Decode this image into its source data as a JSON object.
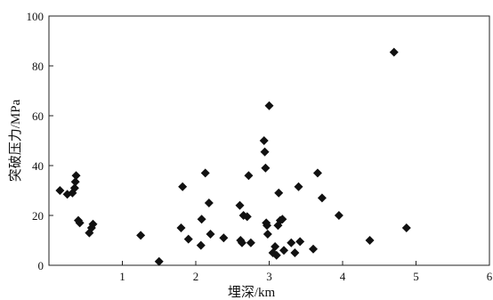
{
  "chart_data": {
    "type": "scatter",
    "title": "",
    "xlabel": "埋深/km",
    "ylabel": "突破压力/MPa",
    "xlim": [
      0,
      6
    ],
    "ylim": [
      0,
      100
    ],
    "x_ticks": [
      1,
      2,
      3,
      4,
      5,
      6
    ],
    "y_ticks": [
      0,
      20,
      40,
      60,
      80,
      100
    ],
    "marker": "diamond",
    "grid": false,
    "colors": {
      "marker": "#111111",
      "axis": "#222222"
    },
    "series": [
      {
        "points": [
          [
            0.15,
            30
          ],
          [
            0.25,
            28.5
          ],
          [
            0.32,
            29
          ],
          [
            0.35,
            31
          ],
          [
            0.36,
            33.5
          ],
          [
            0.37,
            36
          ],
          [
            0.4,
            18
          ],
          [
            0.42,
            17
          ],
          [
            0.55,
            13
          ],
          [
            0.58,
            15
          ],
          [
            0.6,
            16.5
          ],
          [
            1.25,
            12
          ],
          [
            1.5,
            1.5
          ],
          [
            1.8,
            15
          ],
          [
            1.82,
            31.5
          ],
          [
            1.9,
            10.5
          ],
          [
            2.07,
            8
          ],
          [
            2.08,
            18.5
          ],
          [
            2.13,
            37
          ],
          [
            2.18,
            25
          ],
          [
            2.2,
            12.5
          ],
          [
            2.38,
            11
          ],
          [
            2.6,
            24
          ],
          [
            2.61,
            10
          ],
          [
            2.63,
            9
          ],
          [
            2.65,
            20
          ],
          [
            2.7,
            19.5
          ],
          [
            2.72,
            36
          ],
          [
            2.75,
            9
          ],
          [
            2.93,
            50
          ],
          [
            2.94,
            45.5
          ],
          [
            2.95,
            39
          ],
          [
            2.96,
            17
          ],
          [
            2.97,
            16
          ],
          [
            2.98,
            12.5
          ],
          [
            3.0,
            64
          ],
          [
            3.05,
            5
          ],
          [
            3.08,
            7.5
          ],
          [
            3.1,
            4
          ],
          [
            3.12,
            16
          ],
          [
            3.13,
            29
          ],
          [
            3.15,
            18
          ],
          [
            3.18,
            18.5
          ],
          [
            3.2,
            6
          ],
          [
            3.3,
            9
          ],
          [
            3.35,
            5
          ],
          [
            3.4,
            31.5
          ],
          [
            3.42,
            9.5
          ],
          [
            3.6,
            6.5
          ],
          [
            3.66,
            37
          ],
          [
            3.72,
            27
          ],
          [
            3.95,
            20
          ],
          [
            4.37,
            10
          ],
          [
            4.7,
            85.5
          ],
          [
            4.87,
            15
          ]
        ]
      }
    ]
  }
}
